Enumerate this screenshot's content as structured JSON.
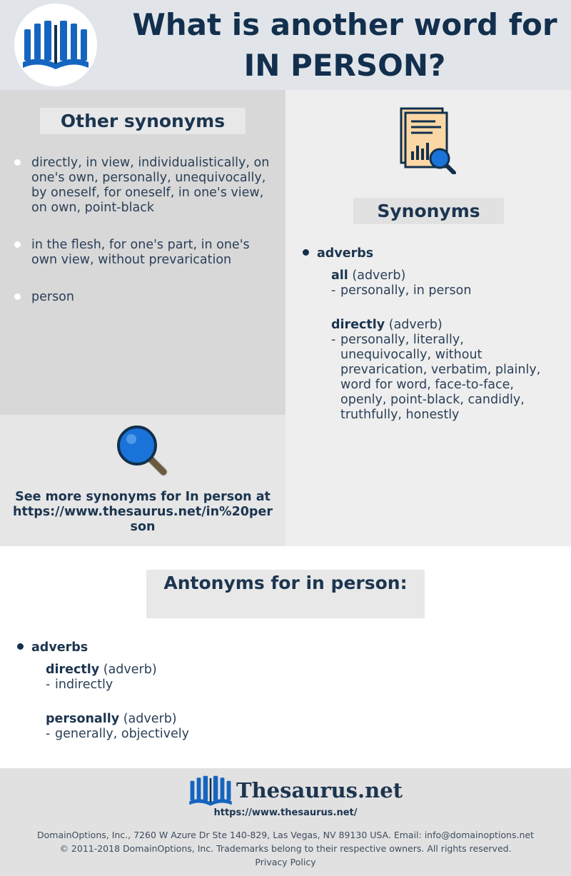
{
  "header": {
    "title_line1": "What is another word for",
    "title_line2": "IN PERSON?"
  },
  "other_synonyms": {
    "title": "Other synonyms",
    "items": [
      "directly, in view, individualistically, on one's own, personally, unequivocally, by oneself, for oneself, in one's view, on own, point-black",
      "in the flesh, for one's part, in one's own view, without prevarication",
      "person"
    ]
  },
  "see_more": {
    "text": "See more synonyms for In person at https://www.thesaurus.net/in%20person"
  },
  "synonyms": {
    "title": "Synonyms",
    "pos": "adverbs",
    "entries": [
      {
        "word": "all",
        "tag": "(adverb)",
        "list": "personally, in person"
      },
      {
        "word": "directly",
        "tag": "(adverb)",
        "list": "personally, literally, unequivocally, without prevarication, verbatim, plainly, word for word, face-to-face, openly, point-black, candidly, truthfully, honestly"
      }
    ]
  },
  "antonyms": {
    "title": "Antonyms for in person:",
    "pos": "adverbs",
    "entries": [
      {
        "word": "directly",
        "tag": "(adverb)",
        "list": "indirectly"
      },
      {
        "word": "personally",
        "tag": "(adverb)",
        "list": "generally, objectively"
      }
    ]
  },
  "footer": {
    "brand": "Thesaurus.net",
    "url": "https://www.thesaurus.net/",
    "address": "DomainOptions, Inc., 7260 W Azure Dr Ste 140-829, Las Vegas, NV 89130 USA. Email: info@domainoptions.net",
    "copyright": "© 2011-2018 DomainOptions, Inc. Trademarks belong to their respective owners. All rights reserved.",
    "privacy": "Privacy Policy"
  },
  "colors": {
    "primary": "#12304d",
    "accent_blue": "#1565c0",
    "header_bg": "#e1e5ea",
    "panel_left": "#d8d8d8",
    "panel_right": "#eeeeee"
  }
}
